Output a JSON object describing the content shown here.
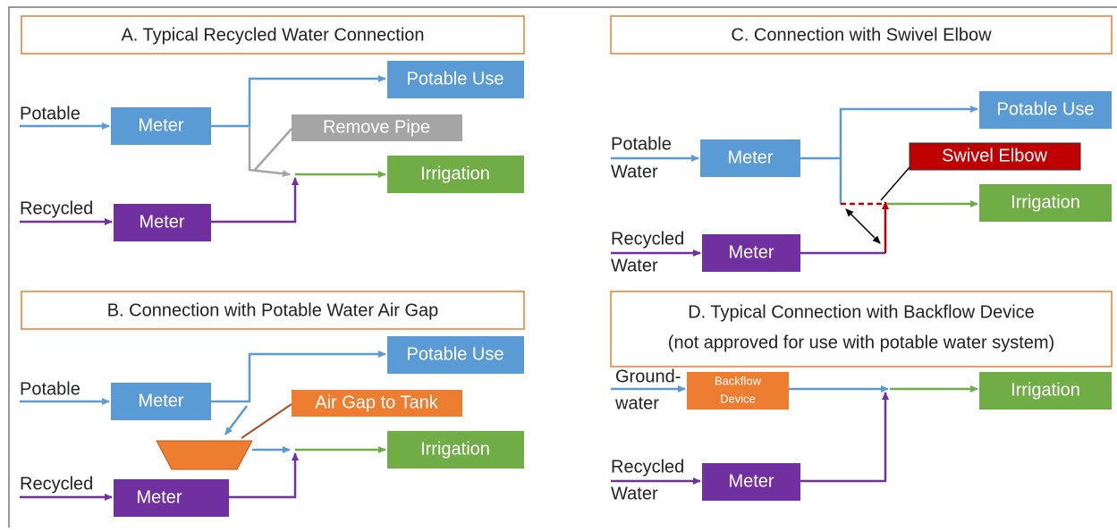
{
  "panels": [
    {
      "title": [
        "A. Typical Recycled Water Connection"
      ],
      "sources": [
        [
          "Potable"
        ],
        [
          "Recycled"
        ]
      ],
      "boxes": [
        "Meter",
        "Meter",
        "Potable Use",
        "Remove Pipe",
        "Irrigation"
      ]
    },
    {
      "title": [
        "B. Connection with Potable Water Air Gap"
      ],
      "sources": [
        [
          "Potable"
        ],
        [
          "Recycled"
        ]
      ],
      "boxes": [
        "Meter",
        "Meter",
        "Potable Use",
        "Air Gap to Tank",
        "Irrigation"
      ]
    },
    {
      "title": [
        "C. Connection with Swivel Elbow"
      ],
      "sources": [
        [
          "Potable",
          "Water"
        ],
        [
          "Recycled",
          "Water"
        ]
      ],
      "boxes": [
        "Meter",
        "Meter",
        "Potable Use",
        "Swivel Elbow",
        "Irrigation"
      ]
    },
    {
      "title": [
        "D. Typical Connection with Backflow Device",
        "(not approved for use with potable water system)"
      ],
      "sources": [
        [
          "Ground-",
          "water"
        ],
        [
          "Recycled",
          "Water"
        ]
      ],
      "boxes": [
        "Meter",
        "Irrigation"
      ],
      "device": [
        "Backflow",
        "Device"
      ]
    }
  ]
}
